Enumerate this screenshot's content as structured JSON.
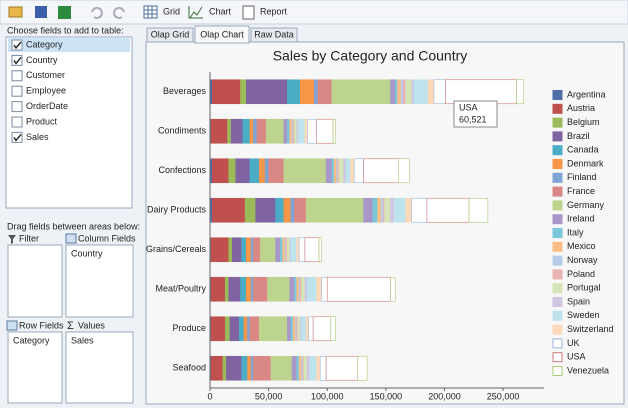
{
  "toolbar": {
    "items": [
      "Grid",
      "Chart",
      "Report"
    ]
  },
  "fields_panel": {
    "label": "Choose fields to add to table:",
    "fields": [
      {
        "name": "Category",
        "checked": true
      },
      {
        "name": "Country",
        "checked": true
      },
      {
        "name": "Customer",
        "checked": false
      },
      {
        "name": "Employee",
        "checked": false
      },
      {
        "name": "OrderDate",
        "checked": false
      },
      {
        "name": "Product",
        "checked": false
      },
      {
        "name": "Sales",
        "checked": true
      }
    ]
  },
  "areas": {
    "label": "Drag fields between areas below:",
    "filter": {
      "title": "Filter",
      "items": []
    },
    "columns": {
      "title": "Column Fields",
      "items": [
        "Country"
      ]
    },
    "rows": {
      "title": "Row Fields",
      "items": [
        "Category"
      ]
    },
    "values": {
      "title": "Values",
      "items": [
        "Sales"
      ]
    }
  },
  "tabs": {
    "items": [
      "Olap Grid",
      "Olap Chart",
      "Raw Data"
    ],
    "active": 1
  },
  "chart_data": {
    "type": "stacked_barh",
    "title": "Sales by Category and Country",
    "categories": [
      "Beverages",
      "Condiments",
      "Confections",
      "Dairy Products",
      "Grains/Cereals",
      "Meat/Poultry",
      "Produce",
      "Seafood"
    ],
    "xlim": [
      0,
      285000
    ],
    "xticks": [
      0,
      {
        "value": 50000,
        "label": "50,000"
      },
      {
        "value": 100000,
        "label": "100,000"
      },
      {
        "value": 150000,
        "label": "150,000"
      },
      {
        "value": 200000,
        "label": "200,000"
      },
      {
        "value": 250000,
        "label": "250,000"
      }
    ],
    "grid": false,
    "legend": "right",
    "series": [
      {
        "name": "Argentina",
        "color": "#4f6fa8",
        "fill": "#4f6fa8",
        "values": [
          2000,
          1000,
          2000,
          2000,
          1000,
          1000,
          1000,
          1000
        ]
      },
      {
        "name": "Austria",
        "color": "#c0504d",
        "fill": "#c0504d",
        "values": [
          24000,
          14000,
          14000,
          28000,
          15000,
          12000,
          12000,
          10000
        ]
      },
      {
        "name": "Belgium",
        "color": "#9bbb59",
        "fill": "#9bbb59",
        "values": [
          5000,
          3000,
          6000,
          9000,
          3000,
          3000,
          4000,
          3000
        ]
      },
      {
        "name": "Brazil",
        "color": "#8064a2",
        "fill": "#8064a2",
        "values": [
          35000,
          10000,
          12000,
          17000,
          8000,
          10000,
          8000,
          13000
        ]
      },
      {
        "name": "Canada",
        "color": "#4bacc6",
        "fill": "#4bacc6",
        "values": [
          11000,
          6000,
          8000,
          7000,
          4000,
          5000,
          4000,
          5000
        ]
      },
      {
        "name": "Denmark",
        "color": "#f79646",
        "fill": "#f79646",
        "values": [
          12000,
          3000,
          5000,
          6000,
          4000,
          4000,
          3000,
          3000
        ]
      },
      {
        "name": "Finland",
        "color": "#7ea4d6",
        "fill": "#7ea4d6",
        "values": [
          3000,
          3000,
          3000,
          3000,
          2000,
          2000,
          2000,
          2000
        ]
      },
      {
        "name": "France",
        "color": "#d98885",
        "fill": "#d98885",
        "values": [
          12000,
          8000,
          13000,
          10000,
          6000,
          12000,
          8000,
          15000
        ]
      },
      {
        "name": "Germany",
        "color": "#bcd48e",
        "fill": "#bcd48e",
        "values": [
          50000,
          15000,
          36000,
          49000,
          13000,
          19000,
          24000,
          18000
        ]
      },
      {
        "name": "Ireland",
        "color": "#a997c9",
        "fill": "#a997c9",
        "values": [
          4000,
          3000,
          5000,
          8000,
          4000,
          4000,
          3000,
          4000
        ]
      },
      {
        "name": "Italy",
        "color": "#7cc6da",
        "fill": "#7cc6da",
        "values": [
          2000,
          2000,
          2000,
          4000,
          2000,
          2000,
          2000,
          2000
        ]
      },
      {
        "name": "Mexico",
        "color": "#fabd86",
        "fill": "#fabd86",
        "values": [
          3000,
          2000,
          2000,
          3000,
          2000,
          2000,
          2000,
          2000
        ]
      },
      {
        "name": "Norway",
        "color": "#b6cce9",
        "fill": "#b6cce9",
        "values": [
          2000,
          1000,
          1000,
          2000,
          1000,
          1000,
          1000,
          1000
        ]
      },
      {
        "name": "Poland",
        "color": "#e9b3b1",
        "fill": "#e9b3b1",
        "values": [
          2000,
          1000,
          1000,
          1000,
          1000,
          1000,
          1000,
          1000
        ]
      },
      {
        "name": "Portugal",
        "color": "#d6e5b6",
        "fill": "#d6e5b6",
        "values": [
          5000,
          2000,
          4000,
          5000,
          2000,
          3000,
          2000,
          3000
        ]
      },
      {
        "name": "Spain",
        "color": "#d0c5e2",
        "fill": "#d0c5e2",
        "values": [
          2000,
          1000,
          2000,
          3000,
          1000,
          2000,
          1000,
          2000
        ]
      },
      {
        "name": "Sweden",
        "color": "#bfe3ed",
        "fill": "#bfe3ed",
        "values": [
          12000,
          6000,
          4000,
          10000,
          5000,
          8000,
          4000,
          6000
        ]
      },
      {
        "name": "Switzerland",
        "color": "#fcd9b8",
        "fill": "#fcd9b8",
        "values": [
          5000,
          2000,
          3000,
          5000,
          2000,
          4000,
          2000,
          3000
        ]
      },
      {
        "name": "UK",
        "color": "#98b4dc",
        "fill": "#ffffff",
        "values": [
          10000,
          8000,
          8000,
          13000,
          5000,
          5000,
          4000,
          5000
        ]
      },
      {
        "name": "USA",
        "color": "#d07a78",
        "fill": "#ffffff",
        "values": [
          60521,
          14000,
          30000,
          36000,
          12000,
          54000,
          15000,
          27000
        ],
        "value_labels": [
          "60,521",
          null,
          null,
          null,
          null,
          null,
          null,
          null
        ]
      },
      {
        "name": "Venezuela",
        "color": "#a9cc74",
        "fill": "#ffffff",
        "values": [
          6000,
          2000,
          9000,
          16000,
          2000,
          4000,
          4000,
          8000
        ]
      }
    ]
  }
}
